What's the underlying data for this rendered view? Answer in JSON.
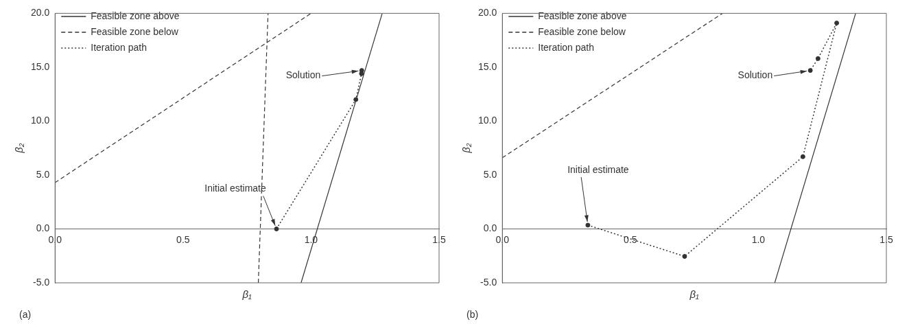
{
  "chart_data": [
    {
      "type": "line",
      "xlabel": "β₁",
      "ylabel": "β₂",
      "xlim": [
        0,
        1.5
      ],
      "xticks": [
        {
          "value": 0,
          "label": "0.0"
        },
        {
          "value": 0.5,
          "label": "0.5"
        },
        {
          "value": 1,
          "label": "1.0"
        },
        {
          "value": 1.5,
          "label": "1.5"
        }
      ],
      "ylim": [
        -5,
        20
      ],
      "yticks": [
        {
          "value": -5,
          "label": "-5.0"
        },
        {
          "value": 0,
          "label": "0.0"
        },
        {
          "value": 5,
          "label": "5.0"
        },
        {
          "value": 10,
          "label": "10.0"
        },
        {
          "value": 15,
          "label": "15.0"
        },
        {
          "value": 20,
          "label": "20.0"
        }
      ],
      "legend": "top left",
      "grid": false,
      "series": [
        {
          "name": "Feasible zone above",
          "color": "#333333",
          "line_style": "solid",
          "marker": "none",
          "x": [
            0.961,
            1.278
          ],
          "values": [
            -5,
            20
          ]
        },
        {
          "name": "Feasible zone below",
          "color": "#333333",
          "line_style": "dashed",
          "marker": "none",
          "x": [
            0,
            1.0
          ],
          "values": [
            4.3,
            20
          ]
        },
        {
          "color": "#333333",
          "line_style": "dashed",
          "marker": "none",
          "x": [
            0.794,
            0.832
          ],
          "values": [
            -5,
            20
          ]
        },
        {
          "name": "Iteration path",
          "color": "#333333",
          "line_style": "dotted",
          "marker": "circle",
          "x": [
            0.865,
            1.175,
            1.197,
            1.198
          ],
          "values": [
            0,
            12.0,
            14.4,
            14.7
          ]
        }
      ],
      "annotations": [
        {
          "text": "Initial estimate",
          "x": 0.865,
          "y": 0
        },
        {
          "text": "Solution",
          "x": 1.198,
          "y": 14.7
        },
        "(a)"
      ]
    },
    {
      "type": "line",
      "xlabel": "β₁",
      "ylabel": "β₂",
      "xlim": [
        0,
        1.5
      ],
      "xticks": [
        {
          "value": 0,
          "label": "0.0"
        },
        {
          "value": 0.5,
          "label": "0.5"
        },
        {
          "value": 1,
          "label": "1.0"
        },
        {
          "value": 1.5,
          "label": "1.5"
        }
      ],
      "ylim": [
        -5,
        20
      ],
      "yticks": [
        {
          "value": -5,
          "label": "-5.0"
        },
        {
          "value": 0,
          "label": "0.0"
        },
        {
          "value": 5,
          "label": "5.0"
        },
        {
          "value": 10,
          "label": "10.0"
        },
        {
          "value": 15,
          "label": "15.0"
        },
        {
          "value": 20,
          "label": "20.0"
        }
      ],
      "legend": "top left",
      "grid": false,
      "series": [
        {
          "name": "Feasible zone above",
          "color": "#333333",
          "line_style": "solid",
          "marker": "none",
          "x": [
            1.064,
            1.38
          ],
          "values": [
            -5,
            20
          ]
        },
        {
          "name": "Feasible zone below",
          "color": "#333333",
          "line_style": "dashed",
          "marker": "none",
          "x": [
            0,
            0.86
          ],
          "values": [
            6.6,
            20
          ]
        },
        {
          "name": "Iteration path",
          "color": "#333333",
          "line_style": "dotted",
          "marker": "circle",
          "x": [
            0.334,
            0.712,
            1.174,
            1.306,
            1.233,
            1.203
          ],
          "values": [
            0.35,
            -2.55,
            6.7,
            19.1,
            15.8,
            14.7
          ]
        }
      ],
      "annotations": [
        {
          "text": "Initial estimate",
          "x": 0.334,
          "y": 0.35
        },
        {
          "text": "Solution",
          "x": 1.203,
          "y": 14.7
        },
        "(b)"
      ]
    }
  ]
}
